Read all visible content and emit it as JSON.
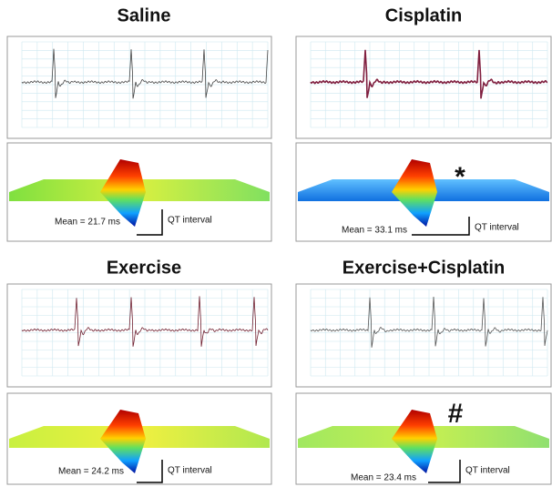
{
  "panels": [
    {
      "title": "Saline",
      "mean": "Mean = 21.7 ms",
      "qt": "QT interval"
    },
    {
      "title": "Cisplatin",
      "mean": "Mean = 33.1 ms",
      "qt": "QT interval",
      "marker": "*"
    },
    {
      "title": "Exercise",
      "mean": "Mean = 24.2 ms",
      "qt": "QT interval"
    },
    {
      "title": "Exercise+Cisplatin",
      "mean": "Mean = 23.4 ms",
      "qt": "QT interval",
      "marker": "#"
    }
  ]
}
